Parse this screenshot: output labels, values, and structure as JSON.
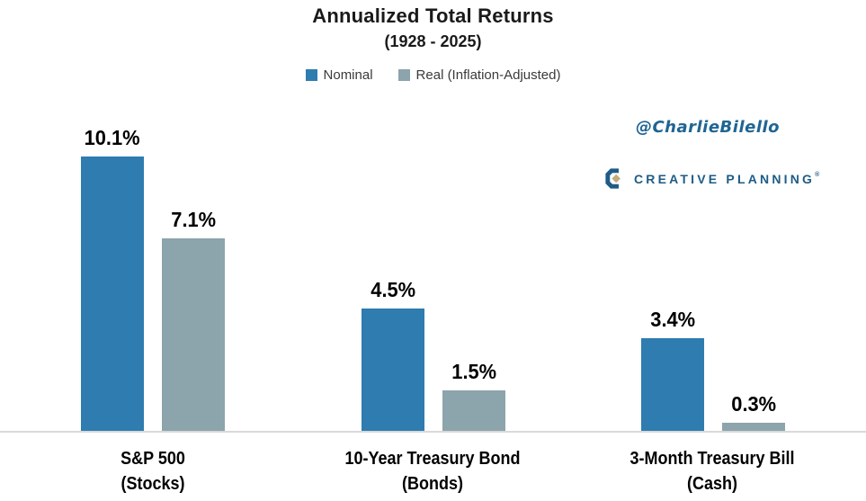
{
  "header": {
    "title": "Annualized Total Returns",
    "subtitle": "(1928 - 2025)"
  },
  "watermark": {
    "handle": "@CharlieBilello",
    "handle_color": "#1f6593",
    "brand_name": "CREATIVE PLANNING",
    "brand_color": "#1d5c87",
    "brand_diamond_color": "#c2ac79",
    "brand_reg_mark": "®"
  },
  "chart_data": {
    "type": "bar",
    "title": "Annualized Total Returns",
    "subtitle": "(1928 - 2025)",
    "xlabel": "",
    "ylabel": "",
    "ylim": [
      0,
      10.6
    ],
    "grid": false,
    "legend_position": "top",
    "axis_line_color": "#d9d9d9",
    "categories": [
      {
        "line1": "S&P 500",
        "line2": "(Stocks)"
      },
      {
        "line1": "10-Year Treasury Bond",
        "line2": "(Bonds)"
      },
      {
        "line1": "3-Month Treasury Bill",
        "line2": "(Cash)"
      }
    ],
    "series": [
      {
        "name": "Nominal",
        "color": "#2e7cb0",
        "values": [
          10.1,
          4.5,
          3.4
        ],
        "labels": [
          "10.1%",
          "4.5%",
          "3.4%"
        ]
      },
      {
        "name": "Real (Inflation-Adjusted)",
        "color": "#8ca4ac",
        "values": [
          7.1,
          1.5,
          0.3
        ],
        "labels": [
          "7.1%",
          "1.5%",
          "0.3%"
        ]
      }
    ]
  }
}
